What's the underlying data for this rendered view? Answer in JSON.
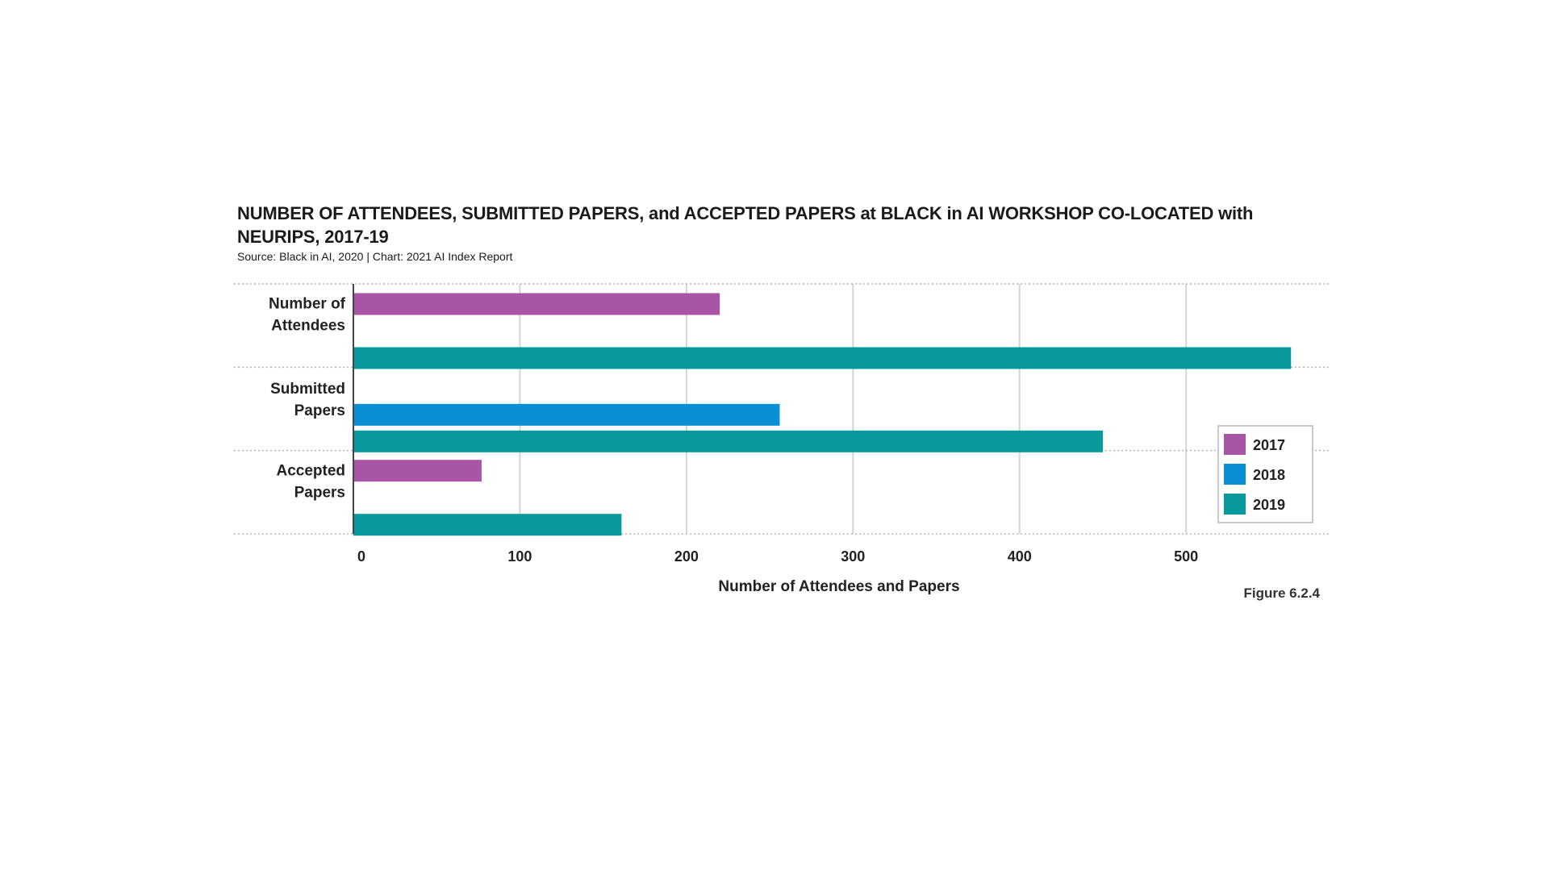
{
  "title": "NUMBER OF ATTENDEES, SUBMITTED PAPERS, and ACCEPTED PAPERS at BLACK in AI WORKSHOP CO-LOCATED with NEURIPS, 2017-19",
  "subtitle": "Source: Black in AI, 2020 | Chart: 2021 AI Index Report",
  "figure_label": "Figure 6.2.4",
  "colors": {
    "2017": "#a855a6",
    "2018": "#0a8fd4",
    "2019": "#07999b"
  },
  "chart_data": {
    "type": "bar",
    "orientation": "horizontal",
    "categories": [
      [
        "Number of",
        "Attendees"
      ],
      [
        "Submitted",
        "Papers"
      ],
      [
        "Accepted",
        "Papers"
      ]
    ],
    "series": [
      {
        "name": "2017",
        "values": [
          220,
          null,
          77
        ]
      },
      {
        "name": "2018",
        "values": [
          null,
          256,
          null
        ]
      },
      {
        "name": "2019",
        "values": [
          563,
          450,
          161
        ]
      }
    ],
    "xlabel": "Number of Attendees and Papers",
    "xlim": [
      0,
      575
    ],
    "xticks": [
      0,
      100,
      200,
      300,
      400,
      500
    ],
    "grid": true,
    "legend": "right"
  }
}
